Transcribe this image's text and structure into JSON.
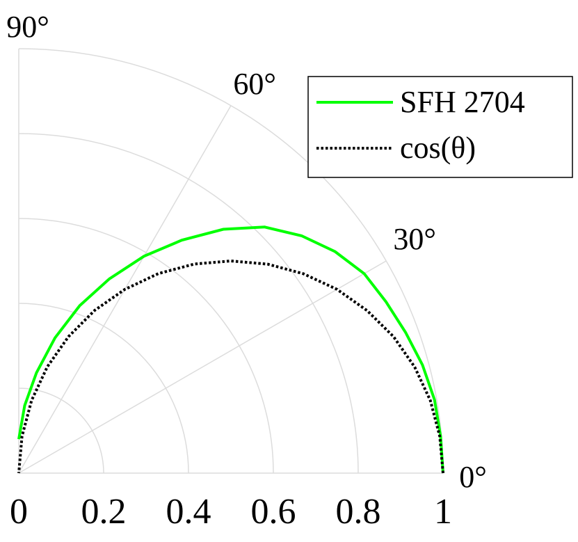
{
  "chart_data": {
    "type": "polar",
    "theta": [
      0,
      5,
      10,
      15,
      20,
      25,
      30,
      35,
      40,
      45,
      50,
      55,
      60,
      65,
      70,
      75,
      80,
      85,
      90
    ],
    "series": [
      {
        "name": "SFH 2704",
        "color": "#00ff00",
        "style": "solid",
        "values": [
          1,
          0.998,
          0.995,
          0.985,
          0.97,
          0.955,
          0.94,
          0.91,
          0.87,
          0.82,
          0.75,
          0.67,
          0.59,
          0.505,
          0.42,
          0.33,
          0.24,
          0.16,
          0.08
        ]
      },
      {
        "name": "cos(θ)",
        "color": "#000000",
        "style": "dotted",
        "values": [
          1,
          0.996,
          0.985,
          0.966,
          0.94,
          0.906,
          0.866,
          0.819,
          0.766,
          0.707,
          0.643,
          0.574,
          0.5,
          0.423,
          0.342,
          0.259,
          0.174,
          0.087,
          0
        ]
      }
    ],
    "rlim": [
      0,
      1
    ],
    "thetalim": [
      0,
      90
    ],
    "rticks": [
      0,
      0.2,
      0.4,
      0.6,
      0.8,
      1
    ],
    "thetaticks": [
      {
        "value": 0,
        "label": "0°"
      },
      {
        "value": 30,
        "label": "30°"
      },
      {
        "value": 60,
        "label": "60°"
      },
      {
        "value": 90,
        "label": "90°"
      }
    ],
    "grid": true,
    "legend": "upper right"
  }
}
